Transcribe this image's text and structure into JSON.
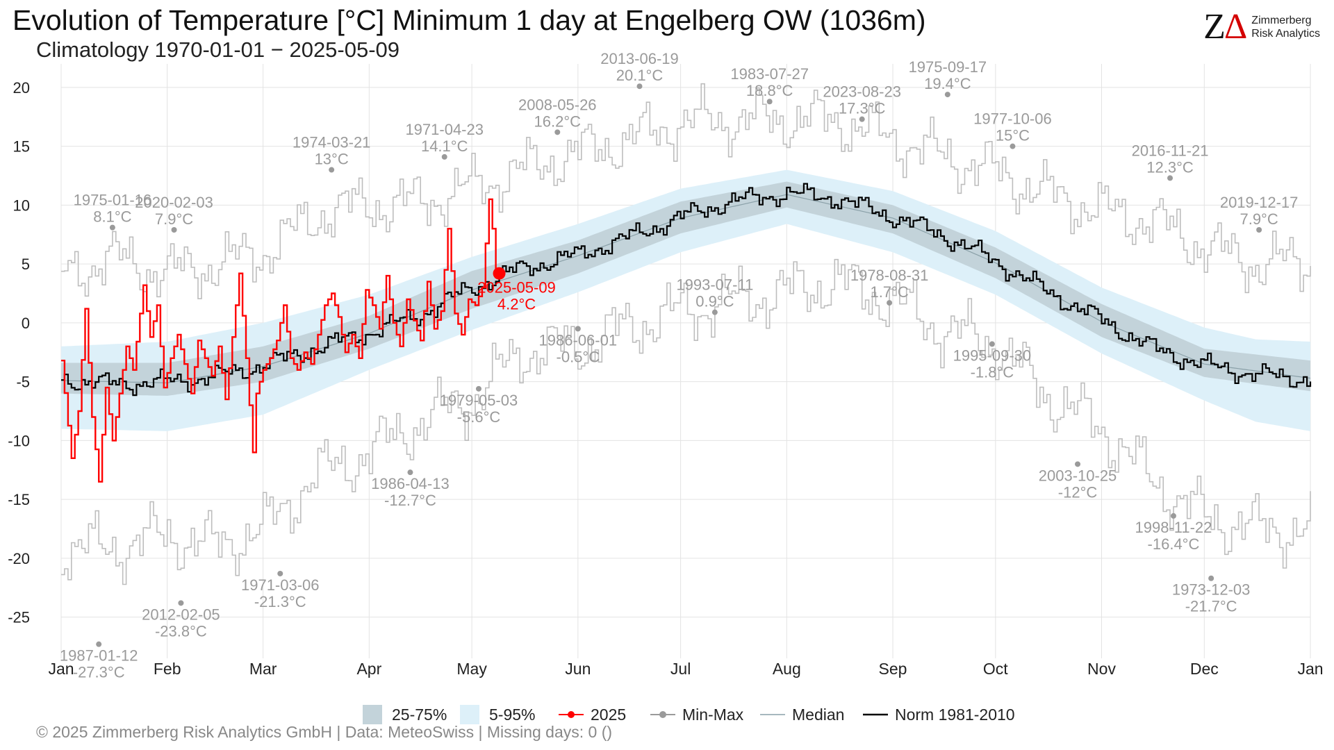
{
  "header": {
    "title": "Evolution of Temperature [°C] Minimum 1 day at Engelberg  OW (1036m)",
    "subtitle": "Climatology 1970-01-01 − 2025-05-09"
  },
  "brand": {
    "mark_z": "Z",
    "mark_d": "Δ",
    "line1": "Zimmerberg",
    "line2": "Risk Analytics"
  },
  "footer": {
    "text": "©  2025 Zimmerberg Risk Analytics GmbH | Data: MeteoSwiss | Missing days: 0 ()"
  },
  "colors": {
    "band50": "#c3d3da",
    "band90": "#ddf0f9",
    "current": "#ff0000",
    "norm": "#000000",
    "median": "#8aa0a8",
    "minmax": "#bdbdbd",
    "minmax_marker": "#9a9a9a",
    "annotation": "#9a9a9a"
  },
  "chart_data": {
    "type": "line",
    "title": "Evolution of Temperature [°C] Minimum 1 day at Engelberg  OW (1036m)",
    "x_unit": "day of year",
    "xlim": [
      1,
      366
    ],
    "ylim": [
      -28.5,
      22
    ],
    "y_ticks": [
      -25,
      -20,
      -15,
      -10,
      -5,
      0,
      5,
      10,
      15,
      20
    ],
    "x_ticks": [
      {
        "day": 1,
        "label": "Jan"
      },
      {
        "day": 32,
        "label": "Feb"
      },
      {
        "day": 60,
        "label": "Mar"
      },
      {
        "day": 91,
        "label": "Apr"
      },
      {
        "day": 121,
        "label": "May"
      },
      {
        "day": 152,
        "label": "Jun"
      },
      {
        "day": 182,
        "label": "Jul"
      },
      {
        "day": 213,
        "label": "Aug"
      },
      {
        "day": 244,
        "label": "Sep"
      },
      {
        "day": 274,
        "label": "Oct"
      },
      {
        "day": 305,
        "label": "Nov"
      },
      {
        "day": 335,
        "label": "Dec"
      },
      {
        "day": 366,
        "label": "Jan"
      }
    ],
    "legend": [
      {
        "key": "band50",
        "label": "25-75%"
      },
      {
        "key": "band90",
        "label": "5-95%"
      },
      {
        "key": "current",
        "label": "2025"
      },
      {
        "key": "minmax",
        "label": "Min-Max"
      },
      {
        "key": "median",
        "label": "Median"
      },
      {
        "key": "norm",
        "label": "Norm 1981-2010"
      }
    ],
    "grid": true,
    "legend_position": "bottom",
    "norm_anchors": [
      [
        1,
        -4.8
      ],
      [
        15,
        -5.2
      ],
      [
        32,
        -5.0
      ],
      [
        45,
        -4.6
      ],
      [
        60,
        -3.6
      ],
      [
        75,
        -2.2
      ],
      [
        91,
        -0.8
      ],
      [
        105,
        0.6
      ],
      [
        121,
        3.0
      ],
      [
        135,
        4.6
      ],
      [
        152,
        5.8
      ],
      [
        166,
        7.2
      ],
      [
        182,
        9.0
      ],
      [
        196,
        10.3
      ],
      [
        213,
        11.0
      ],
      [
        227,
        10.6
      ],
      [
        244,
        9.0
      ],
      [
        258,
        7.5
      ],
      [
        274,
        5.2
      ],
      [
        288,
        2.8
      ],
      [
        305,
        0.2
      ],
      [
        320,
        -2.2
      ],
      [
        335,
        -3.6
      ],
      [
        350,
        -4.4
      ],
      [
        366,
        -4.8
      ]
    ],
    "band50_anchors": [
      [
        1,
        -6.0,
        -3.4
      ],
      [
        32,
        -6.2,
        -3.4
      ],
      [
        60,
        -5.0,
        -2.0
      ],
      [
        91,
        -2.2,
        0.6
      ],
      [
        121,
        1.2,
        4.4
      ],
      [
        152,
        4.2,
        7.0
      ],
      [
        182,
        7.6,
        10.3
      ],
      [
        213,
        9.8,
        12.0
      ],
      [
        244,
        7.6,
        10.0
      ],
      [
        274,
        3.8,
        6.4
      ],
      [
        305,
        -1.2,
        1.6
      ],
      [
        335,
        -4.6,
        -2.2
      ],
      [
        366,
        -5.8,
        -3.2
      ]
    ],
    "band90_anchors": [
      [
        1,
        -9.0,
        -2.0
      ],
      [
        32,
        -9.2,
        -1.6
      ],
      [
        60,
        -7.8,
        0.0
      ],
      [
        91,
        -4.0,
        2.4
      ],
      [
        121,
        -0.6,
        5.6
      ],
      [
        152,
        2.6,
        8.4
      ],
      [
        182,
        6.0,
        11.4
      ],
      [
        213,
        8.4,
        13.0
      ],
      [
        244,
        6.0,
        11.2
      ],
      [
        274,
        2.4,
        7.8
      ],
      [
        305,
        -2.6,
        3.0
      ],
      [
        335,
        -6.6,
        -0.4
      ],
      [
        350,
        -8.4,
        -1.4
      ],
      [
        366,
        -9.2,
        -1.6
      ]
    ],
    "median_anchors": [
      [
        1,
        -4.9
      ],
      [
        32,
        -5.1
      ],
      [
        60,
        -3.7
      ],
      [
        91,
        -0.9
      ],
      [
        121,
        2.8
      ],
      [
        152,
        5.7
      ],
      [
        182,
        8.9
      ],
      [
        213,
        10.9
      ],
      [
        244,
        8.9
      ],
      [
        274,
        5.1
      ],
      [
        305,
        0.1
      ],
      [
        335,
        -3.5
      ],
      [
        366,
        -4.7
      ]
    ],
    "max_anchors": [
      [
        1,
        4.0
      ],
      [
        15,
        5.5
      ],
      [
        32,
        4.2
      ],
      [
        50,
        5.2
      ],
      [
        60,
        6.0
      ],
      [
        78,
        9.5
      ],
      [
        91,
        10.0
      ],
      [
        105,
        10.2
      ],
      [
        121,
        11.5
      ],
      [
        146,
        14.0
      ],
      [
        166,
        15.5
      ],
      [
        182,
        17.0
      ],
      [
        196,
        17.2
      ],
      [
        213,
        17.3
      ],
      [
        227,
        17.2
      ],
      [
        244,
        15.6
      ],
      [
        258,
        14.2
      ],
      [
        274,
        12.8
      ],
      [
        288,
        11.0
      ],
      [
        305,
        9.5
      ],
      [
        320,
        8.6
      ],
      [
        335,
        6.4
      ],
      [
        350,
        5.0
      ],
      [
        366,
        5.2
      ]
    ],
    "min_anchors": [
      [
        1,
        -19.0
      ],
      [
        15,
        -19.2
      ],
      [
        32,
        -18.0
      ],
      [
        45,
        -19.0
      ],
      [
        60,
        -17.5
      ],
      [
        75,
        -13.0
      ],
      [
        91,
        -11.0
      ],
      [
        105,
        -8.5
      ],
      [
        121,
        -6.5
      ],
      [
        135,
        -2.5
      ],
      [
        152,
        -2.0
      ],
      [
        166,
        -0.4
      ],
      [
        182,
        1.0
      ],
      [
        196,
        1.8
      ],
      [
        213,
        2.6
      ],
      [
        227,
        3.5
      ],
      [
        244,
        1.8
      ],
      [
        258,
        -0.6
      ],
      [
        274,
        -1.8
      ],
      [
        288,
        -6.0
      ],
      [
        305,
        -9.0
      ],
      [
        320,
        -13.5
      ],
      [
        335,
        -16.5
      ],
      [
        350,
        -17.5
      ],
      [
        366,
        -17.6
      ]
    ],
    "current_series": {
      "name": "2025",
      "end_label": "2025-05-09\n4.2°C",
      "end": [
        129,
        4.2
      ],
      "anchors": [
        [
          1,
          -3.2
        ],
        [
          4,
          -11.5
        ],
        [
          6,
          -7.5
        ],
        [
          8,
          1.2
        ],
        [
          10,
          -8.0
        ],
        [
          12,
          -13.5
        ],
        [
          14,
          -5.5
        ],
        [
          16,
          -10.0
        ],
        [
          18,
          -6.0
        ],
        [
          20,
          -2.0
        ],
        [
          22,
          -4.0
        ],
        [
          25,
          3.2
        ],
        [
          27,
          -1.2
        ],
        [
          29,
          1.5
        ],
        [
          31,
          -5.5
        ],
        [
          33,
          -3.0
        ],
        [
          35,
          -1.0
        ],
        [
          37,
          -3.5
        ],
        [
          39,
          -6.0
        ],
        [
          41,
          -1.5
        ],
        [
          43,
          -3.0
        ],
        [
          45,
          -4.5
        ],
        [
          47,
          -2.0
        ],
        [
          49,
          -6.5
        ],
        [
          51,
          -1.2
        ],
        [
          53,
          4.2
        ],
        [
          55,
          -3.0
        ],
        [
          57,
          -11.0
        ],
        [
          58,
          -6.0
        ],
        [
          60,
          -4.0
        ],
        [
          62,
          -3.0
        ],
        [
          64,
          -1.5
        ],
        [
          66,
          1.5
        ],
        [
          68,
          -3.0
        ],
        [
          70,
          -4.0
        ],
        [
          72,
          -2.5
        ],
        [
          74,
          -3.5
        ],
        [
          76,
          -1.0
        ],
        [
          78,
          1.5
        ],
        [
          80,
          2.5
        ],
        [
          82,
          0.5
        ],
        [
          84,
          -2.5
        ],
        [
          86,
          -1.0
        ],
        [
          88,
          -3.0
        ],
        [
          90,
          2.8
        ],
        [
          92,
          1.5
        ],
        [
          94,
          -0.5
        ],
        [
          96,
          4.0
        ],
        [
          98,
          0.0
        ],
        [
          100,
          -2.0
        ],
        [
          102,
          2.0
        ],
        [
          104,
          0.2
        ],
        [
          106,
          -1.5
        ],
        [
          108,
          3.5
        ],
        [
          110,
          -0.5
        ],
        [
          112,
          1.0
        ],
        [
          114,
          8.0
        ],
        [
          116,
          0.8
        ],
        [
          118,
          -1.0
        ],
        [
          120,
          2.0
        ],
        [
          122,
          1.5
        ],
        [
          124,
          3.0
        ],
        [
          126,
          10.5
        ],
        [
          127,
          8.0
        ],
        [
          128,
          4.5
        ],
        [
          129,
          4.2
        ]
      ]
    },
    "annotations": [
      {
        "day": 16,
        "value": 8.1,
        "label": "1975-01-16\n8.1°C"
      },
      {
        "day": 34,
        "value": 7.9,
        "label": "2020-02-03\n7.9°C"
      },
      {
        "day": 80,
        "value": 13.0,
        "label": "1974-03-21\n13°C"
      },
      {
        "day": 113,
        "value": 14.1,
        "label": "1971-04-23\n14.1°C"
      },
      {
        "day": 146,
        "value": 16.2,
        "label": "2008-05-26\n16.2°C"
      },
      {
        "day": 170,
        "value": 20.1,
        "label": "2013-06-19\n20.1°C"
      },
      {
        "day": 208,
        "value": 18.8,
        "label": "1983-07-27\n18.8°C"
      },
      {
        "day": 235,
        "value": 17.3,
        "label": "2023-08-23\n17.3°C"
      },
      {
        "day": 260,
        "value": 19.4,
        "label": "1975-09-17\n19.4°C"
      },
      {
        "day": 279,
        "value": 15.0,
        "label": "1977-10-06\n15°C"
      },
      {
        "day": 325,
        "value": 12.3,
        "label": "2016-11-21\n12.3°C"
      },
      {
        "day": 351,
        "value": 7.9,
        "label": "2019-12-17\n7.9°C"
      },
      {
        "day": 12,
        "value": -27.3,
        "label": "1987-01-12\n-27.3°C"
      },
      {
        "day": 36,
        "value": -23.8,
        "label": "2012-02-05\n-23.8°C"
      },
      {
        "day": 65,
        "value": -21.3,
        "label": "1971-03-06\n-21.3°C"
      },
      {
        "day": 103,
        "value": -12.7,
        "label": "1986-04-13\n-12.7°C"
      },
      {
        "day": 123,
        "value": -5.6,
        "label": "1979-05-03\n-5.6°C"
      },
      {
        "day": 152,
        "value": -0.5,
        "label": "1986-06-01\n-0.5°C"
      },
      {
        "day": 192,
        "value": 0.9,
        "label": "1993-07-11\n0.9°C"
      },
      {
        "day": 243,
        "value": 1.7,
        "label": "1978-08-31\n1.7°C"
      },
      {
        "day": 273,
        "value": -1.8,
        "label": "1995-09-30\n-1.8°C"
      },
      {
        "day": 298,
        "value": -12.0,
        "label": "2003-10-25\n-12°C"
      },
      {
        "day": 326,
        "value": -16.4,
        "label": "1998-11-22\n-16.4°C"
      },
      {
        "day": 337,
        "value": -21.7,
        "label": "1973-12-03\n-21.7°C"
      }
    ]
  }
}
